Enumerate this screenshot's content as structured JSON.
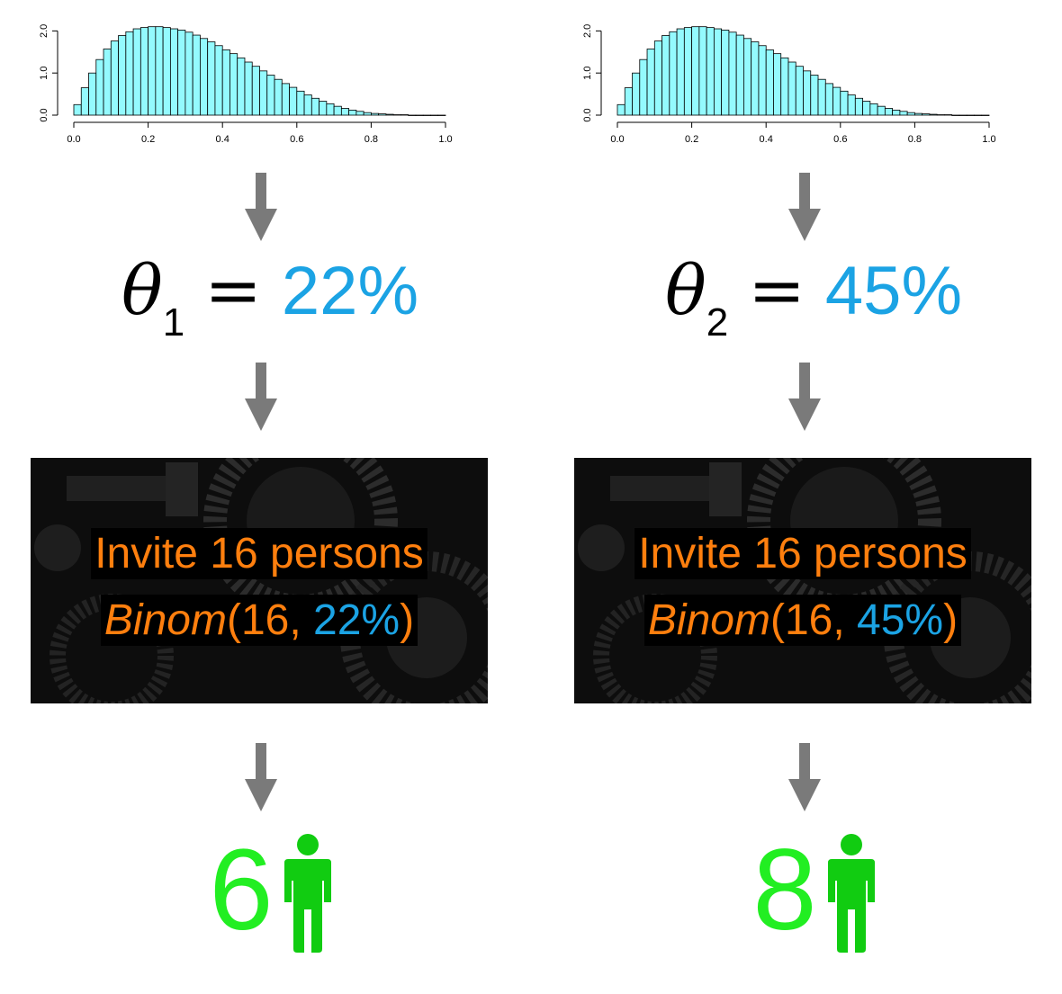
{
  "panels": [
    {
      "histogram": {
        "type": "bar",
        "x_ticks": [
          "0.0",
          "0.2",
          "0.4",
          "0.6",
          "0.8",
          "1.0"
        ],
        "y_ticks": [
          "0.0",
          "1.0",
          "2.0"
        ],
        "xlim": [
          0,
          1
        ],
        "ylim": [
          0,
          2.2
        ],
        "bin_width": 0.02,
        "values": [
          0.25,
          0.65,
          1.0,
          1.32,
          1.57,
          1.76,
          1.89,
          1.98,
          2.05,
          2.08,
          2.1,
          2.1,
          2.08,
          2.05,
          2.02,
          1.97,
          1.9,
          1.82,
          1.74,
          1.65,
          1.55,
          1.46,
          1.36,
          1.26,
          1.16,
          1.05,
          0.95,
          0.85,
          0.75,
          0.66,
          0.57,
          0.48,
          0.4,
          0.33,
          0.27,
          0.21,
          0.16,
          0.12,
          0.09,
          0.06,
          0.04,
          0.03,
          0.02,
          0.01,
          0.01,
          0.0,
          0.0,
          0.0,
          0.0,
          0.0
        ],
        "fill_color": "#94fafe"
      },
      "theta_symbol": "θ",
      "theta_index": "1",
      "equals": "=",
      "theta_value": "22%",
      "machine": {
        "line1": "Invite 16 persons",
        "line2_fn": "Binom",
        "line2_open": "(16, ",
        "line2_pct": "22%",
        "line2_close": ")"
      },
      "result_count": "6"
    },
    {
      "histogram": {
        "type": "bar",
        "x_ticks": [
          "0.0",
          "0.2",
          "0.4",
          "0.6",
          "0.8",
          "1.0"
        ],
        "y_ticks": [
          "0.0",
          "1.0",
          "2.0"
        ],
        "xlim": [
          0,
          1
        ],
        "ylim": [
          0,
          2.2
        ],
        "bin_width": 0.02,
        "values": [
          0.25,
          0.65,
          1.0,
          1.32,
          1.57,
          1.76,
          1.89,
          1.98,
          2.05,
          2.08,
          2.1,
          2.1,
          2.08,
          2.05,
          2.02,
          1.97,
          1.9,
          1.82,
          1.74,
          1.65,
          1.55,
          1.46,
          1.36,
          1.26,
          1.16,
          1.05,
          0.95,
          0.85,
          0.75,
          0.66,
          0.57,
          0.48,
          0.4,
          0.33,
          0.27,
          0.21,
          0.16,
          0.12,
          0.09,
          0.06,
          0.04,
          0.03,
          0.02,
          0.01,
          0.01,
          0.0,
          0.0,
          0.0,
          0.0,
          0.0
        ],
        "fill_color": "#94fafe"
      },
      "theta_symbol": "θ",
      "theta_index": "2",
      "equals": "=",
      "theta_value": "45%",
      "machine": {
        "line1": "Invite 16 persons",
        "line2_fn": "Binom",
        "line2_open": "(16, ",
        "line2_pct": "45%",
        "line2_close": ")"
      },
      "result_count": "8"
    }
  ],
  "colors": {
    "arrow": "#7a7a7a",
    "accent_blue": "#1ba3e4",
    "orange": "#ff7f0e",
    "green": "#22ee22",
    "person": "#11cc11"
  },
  "icons": [
    "down-arrow-icon",
    "person-icon",
    "gear-icon"
  ]
}
